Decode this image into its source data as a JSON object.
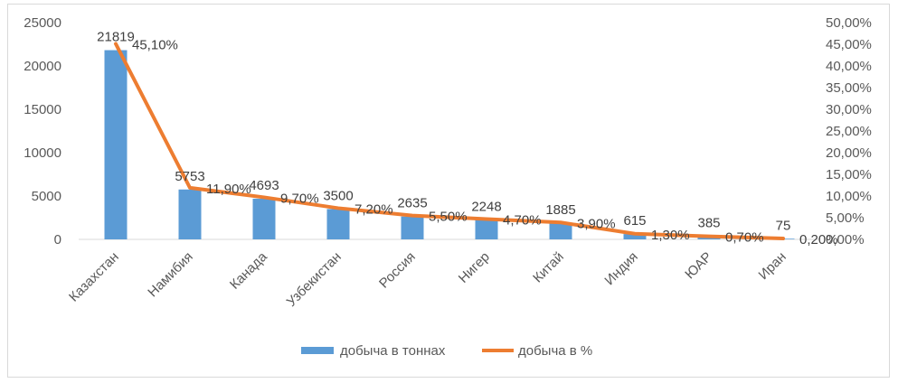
{
  "chart_data": {
    "type": "bar+line",
    "categories": [
      "Казахстан",
      "Намибия",
      "Канада",
      "Узбекистан",
      "Россия",
      "Нигер",
      "Китай",
      "Индия",
      "ЮАР",
      "Иран"
    ],
    "series": [
      {
        "name": "добыча в тоннах",
        "type": "bar",
        "axis": "left",
        "color": "#5b9bd5",
        "values": [
          21819,
          5753,
          4693,
          3500,
          2635,
          2248,
          1885,
          615,
          385,
          75
        ],
        "labels": [
          "21819",
          "5753",
          "4693",
          "3500",
          "2635",
          "2248",
          "1885",
          "615",
          "385",
          "75"
        ]
      },
      {
        "name": "добыча в %",
        "type": "line",
        "axis": "right",
        "color": "#ed7d31",
        "values": [
          45.1,
          11.9,
          9.7,
          7.2,
          5.5,
          4.7,
          3.9,
          1.3,
          0.7,
          0.2
        ],
        "labels": [
          "45,10%",
          "11,90%",
          "9,70%",
          "7,20%",
          "5,50%",
          "4,70%",
          "3,90%",
          "1,30%",
          "0,70%",
          "0,20%"
        ]
      }
    ],
    "y_left": {
      "min": 0,
      "max": 25000,
      "ticks": [
        0,
        5000,
        10000,
        15000,
        20000,
        25000
      ],
      "tick_labels": [
        "0",
        "5000",
        "10000",
        "15000",
        "20000",
        "25000"
      ]
    },
    "y_right": {
      "min": 0,
      "max": 50,
      "ticks": [
        0,
        5,
        10,
        15,
        20,
        25,
        30,
        35,
        40,
        45,
        50
      ],
      "tick_labels": [
        "0,00%",
        "5,00%",
        "10,00%",
        "15,00%",
        "20,00%",
        "25,00%",
        "30,00%",
        "35,00%",
        "40,00%",
        "45,00%",
        "50,00%"
      ]
    },
    "grid": false,
    "legend": "bottom",
    "title": "",
    "xlabel": "",
    "ylabel": ""
  }
}
